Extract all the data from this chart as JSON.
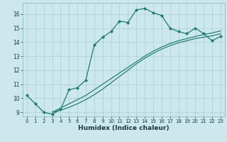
{
  "xlabel": "Humidex (Indice chaleur)",
  "bg_color": "#cce8ec",
  "grid_color": "#aacdd4",
  "line_color": "#1e7a72",
  "xlim": [
    -0.5,
    23.5
  ],
  "ylim": [
    8.7,
    16.8
  ],
  "yticks": [
    9,
    10,
    11,
    12,
    13,
    14,
    15,
    16
  ],
  "xticks": [
    0,
    1,
    2,
    3,
    4,
    5,
    6,
    7,
    8,
    9,
    10,
    11,
    12,
    13,
    14,
    15,
    16,
    17,
    18,
    19,
    20,
    21,
    22,
    23
  ],
  "line1_x": [
    0,
    1,
    2,
    3,
    4,
    5,
    6,
    7,
    8,
    9,
    10,
    11,
    12,
    13,
    14,
    15,
    16,
    17,
    18,
    19,
    20,
    21,
    22,
    23
  ],
  "line1_y": [
    10.2,
    9.6,
    9.0,
    8.85,
    9.2,
    10.6,
    10.75,
    11.3,
    13.8,
    14.35,
    14.75,
    15.5,
    15.4,
    16.3,
    16.4,
    16.1,
    15.9,
    15.0,
    14.75,
    14.6,
    15.0,
    14.6,
    14.1,
    14.4
  ],
  "line2_x": [
    3,
    4,
    5,
    6,
    7,
    8,
    9,
    10,
    11,
    12,
    13,
    14,
    15,
    16,
    17,
    18,
    19,
    20,
    21,
    22,
    23
  ],
  "line2_y": [
    9.0,
    9.3,
    9.6,
    9.9,
    10.2,
    10.6,
    11.0,
    11.4,
    11.8,
    12.2,
    12.6,
    13.0,
    13.35,
    13.65,
    13.9,
    14.1,
    14.25,
    14.4,
    14.55,
    14.65,
    14.8
  ],
  "line3_x": [
    3,
    4,
    5,
    6,
    7,
    8,
    9,
    10,
    11,
    12,
    13,
    14,
    15,
    16,
    17,
    18,
    19,
    20,
    21,
    22,
    23
  ],
  "line3_y": [
    9.0,
    9.15,
    9.35,
    9.6,
    9.9,
    10.25,
    10.65,
    11.1,
    11.55,
    12.0,
    12.45,
    12.85,
    13.2,
    13.5,
    13.75,
    13.95,
    14.1,
    14.25,
    14.35,
    14.45,
    14.6
  ]
}
